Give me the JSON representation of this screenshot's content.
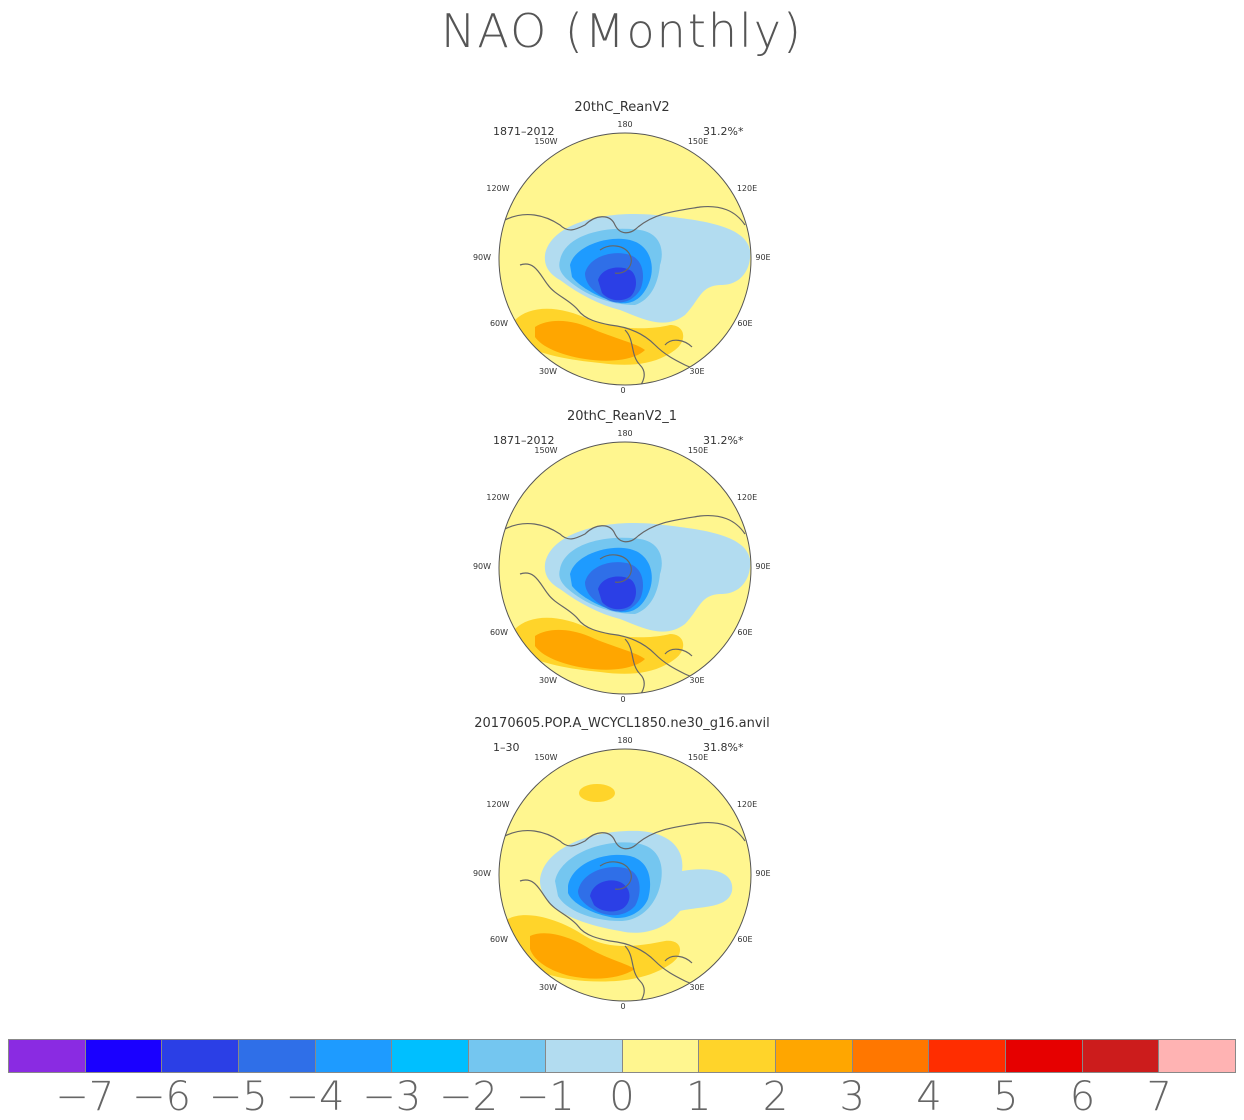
{
  "title": "NAO (Monthly)",
  "panels": [
    {
      "title": "20thC_ReanV2",
      "period": "1871–2012",
      "variance": "31.2%*"
    },
    {
      "title": "20thC_ReanV2_1",
      "period": "1871–2012",
      "variance": "31.2%*"
    },
    {
      "title": "20170605.POP.A_WCYCL1850.ne30_g16.anvil",
      "period": "1–30",
      "variance": "31.8%*"
    }
  ],
  "longitude_labels": [
    "180",
    "150E",
    "120E",
    "90E",
    "60E",
    "30E",
    "0",
    "30W",
    "60W",
    "90W",
    "120W",
    "150W"
  ],
  "colorbar": {
    "colors": [
      "#8a2be2",
      "#1a00ff",
      "#2b3fe6",
      "#2f6fe8",
      "#1e9bff",
      "#00bfff",
      "#74c6f0",
      "#b2dcf0",
      "#fff68f",
      "#ffd42a",
      "#ffa600",
      "#ff7700",
      "#ff2d00",
      "#e60000",
      "#cc1c1c",
      "#ffb3b3"
    ],
    "tick_labels": [
      "−7",
      "−6",
      "−5",
      "−4",
      "−3",
      "−2",
      "−1",
      "0",
      "1",
      "2",
      "3",
      "4",
      "5",
      "6",
      "7"
    ]
  }
}
